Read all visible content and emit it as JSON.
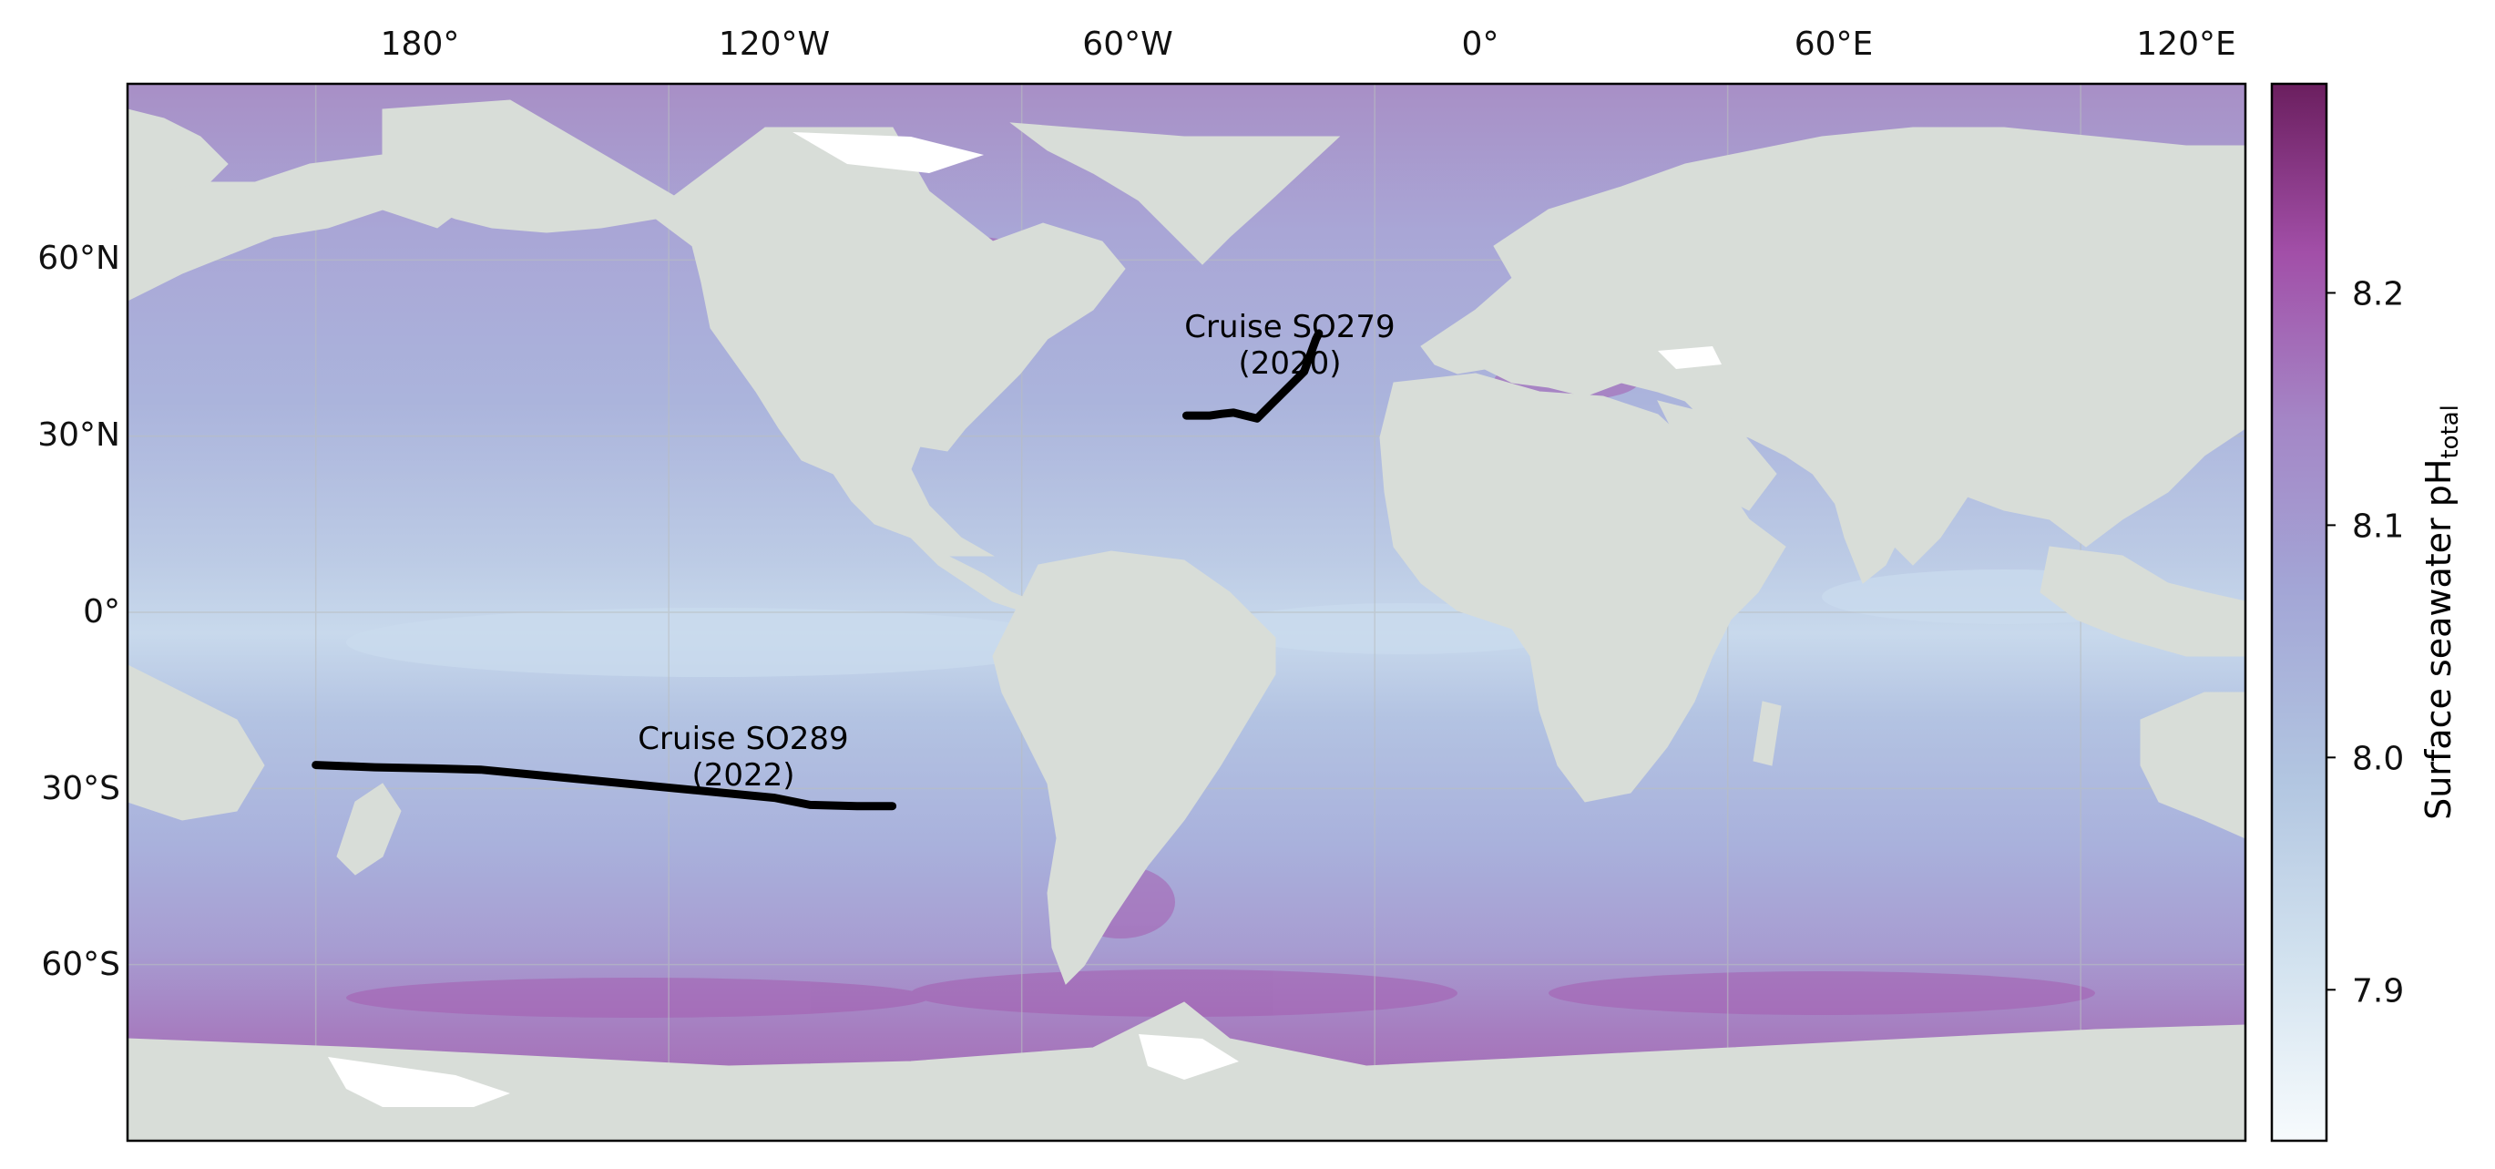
{
  "map": {
    "projection": "Plate Carree, central longitude -20",
    "lon_ticks": [
      "180°",
      "120°W",
      "60°W",
      "0°",
      "60°E",
      "120°E"
    ],
    "lat_ticks": [
      "60°N",
      "30°N",
      "0°",
      "30°S",
      "60°S"
    ],
    "grid": true,
    "colors": {
      "land": "#d8ddd8",
      "ice": "#ffffff",
      "track": "#000000",
      "ocean_low": "#c8dceb",
      "ocean_mid": "#a9b7dc",
      "ocean_high": "#a870b8",
      "frame": "#000000"
    },
    "annotations": [
      {
        "lines": [
          "Cruise SO279",
          "(2020)"
        ]
      },
      {
        "lines": [
          "Cruise SO289",
          "(2022)"
        ]
      }
    ],
    "cruise_tracks": [
      {
        "name": "SO279",
        "year": "2020",
        "lon": [
          -9.5,
          -10.0,
          -12.0,
          -14.0,
          -16.0,
          -18.0,
          -20.0,
          -22.0,
          -24.0,
          -26.0,
          -28.0,
          -30.0,
          -32.0
        ],
        "lat": [
          47.5,
          46.5,
          41.0,
          39.0,
          37.0,
          35.0,
          33.0,
          33.5,
          34.0,
          33.8,
          33.5,
          33.5,
          33.5
        ]
      },
      {
        "name": "SO289",
        "year": "2022",
        "lon": [
          -180.0,
          -170.0,
          -160.0,
          -152.0,
          -102.0,
          -96.0,
          -88.0,
          -82.0
        ],
        "lat": [
          -26.0,
          -26.4,
          -26.6,
          -26.8,
          -31.6,
          -32.8,
          -33.0,
          -33.0
        ]
      }
    ]
  },
  "colorbar": {
    "label": "Surface seawater pH",
    "label_sub": "total",
    "ticks": [
      "8.2",
      "8.1",
      "8.0",
      "7.9"
    ],
    "tick_values": [
      8.2,
      8.1,
      8.0,
      7.9
    ],
    "range": [
      7.835,
      8.29
    ],
    "colors": [
      "#f7fbfd",
      "#c4d8ea",
      "#9fb3d8",
      "#a48fc9",
      "#a55fb0",
      "#a0358f",
      "#6e1e63"
    ]
  }
}
